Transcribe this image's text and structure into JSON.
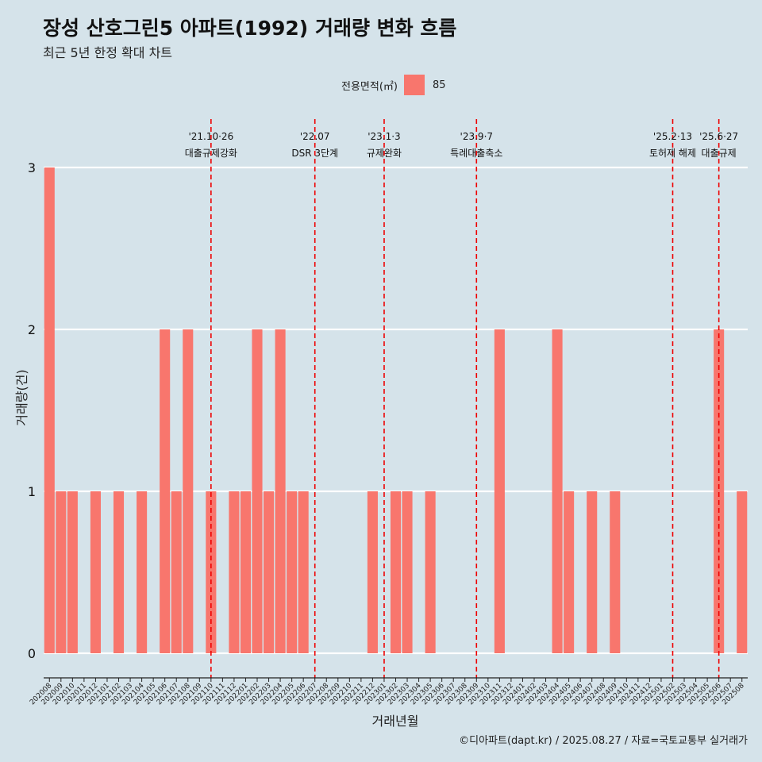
{
  "title": "장성 산호그린5 아파트(1992) 거래량 변화 흐름",
  "subtitle": "최근 5년 한정 확대 차트",
  "caption": "©디아파트(dapt.kr) / 2025.08.27 / 자료=국토교통부 실거래가",
  "legend": {
    "title": "전용면적(㎡)",
    "item": "85",
    "color": "#f8766d"
  },
  "chart_data": {
    "type": "bar",
    "xlabel": "거래년월",
    "ylabel": "거래량(건)",
    "ylim": [
      0,
      3
    ],
    "yticks": [
      0,
      1,
      2,
      3
    ],
    "grid": true,
    "bar_color": "#f8766d",
    "categories": [
      "202008",
      "202009",
      "202010",
      "202011",
      "202012",
      "202101",
      "202102",
      "202103",
      "202104",
      "202105",
      "202106",
      "202107",
      "202108",
      "202109",
      "202110",
      "202111",
      "202112",
      "202201",
      "202202",
      "202203",
      "202204",
      "202205",
      "202206",
      "202207",
      "202208",
      "202209",
      "202210",
      "202211",
      "202212",
      "202301",
      "202302",
      "202303",
      "202304",
      "202305",
      "202306",
      "202307",
      "202308",
      "202309",
      "202310",
      "202311",
      "202312",
      "202401",
      "202402",
      "202403",
      "202404",
      "202405",
      "202406",
      "202407",
      "202408",
      "202409",
      "202410",
      "202411",
      "202412",
      "202501",
      "202502",
      "202503",
      "202504",
      "202505",
      "202506",
      "202507",
      "202508"
    ],
    "series": [
      {
        "name": "85",
        "values": [
          3,
          1,
          1,
          0,
          1,
          0,
          1,
          0,
          1,
          0,
          2,
          1,
          2,
          0,
          1,
          0,
          1,
          1,
          2,
          1,
          2,
          1,
          1,
          0,
          0,
          0,
          0,
          0,
          1,
          0,
          1,
          1,
          0,
          1,
          0,
          0,
          0,
          0,
          0,
          2,
          0,
          0,
          0,
          0,
          2,
          1,
          0,
          1,
          0,
          1,
          0,
          0,
          0,
          0,
          0,
          0,
          0,
          0,
          2,
          0,
          1
        ]
      }
    ],
    "annotations": [
      {
        "category": "202110",
        "date": "'21.10·26",
        "label": "대출규제강화"
      },
      {
        "category": "202207",
        "date": "'22.07",
        "label": "DSR 3단계"
      },
      {
        "category": "202301",
        "date": "'23.1·3",
        "label": "규제완화"
      },
      {
        "category": "202309",
        "date": "'23.9·7",
        "label": "특례대출축소"
      },
      {
        "category": "202502",
        "date": "'25.2·13",
        "label": "토허제 해제"
      },
      {
        "category": "202506",
        "date": "'25.6·27",
        "label": "대출규제"
      }
    ],
    "annotation_color": "#ee0000"
  }
}
